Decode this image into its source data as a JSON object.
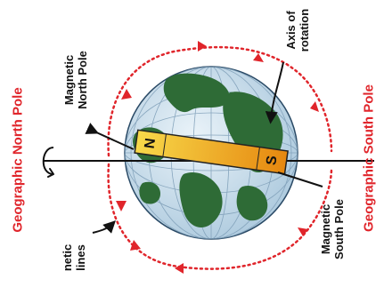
{
  "labels": {
    "geographic_north_pole": "Geographic North Pole",
    "geographic_south_pole": "Geographic South Pole",
    "magnetic_north_line1": "Magnetic",
    "magnetic_north_line2": "North Pole",
    "axis_line1": "Axis of",
    "axis_line2": "rotation",
    "magnetic_south_line1": "Magnetic",
    "magnetic_south_line2": "South Pole",
    "field_lines_line1": "netic",
    "field_lines_line2": "lines",
    "magnet_n": "N",
    "magnet_s": "S"
  },
  "colors": {
    "geographic_label": "#e0252b",
    "field_lines": "#e0252b",
    "ocean": "#cfe2ee",
    "land": "#2e6b36",
    "magnet_start": "#f5cf3a",
    "magnet_end": "#e88a12",
    "text": "#111111"
  },
  "icons": [
    "rotation-arrow-icon"
  ]
}
